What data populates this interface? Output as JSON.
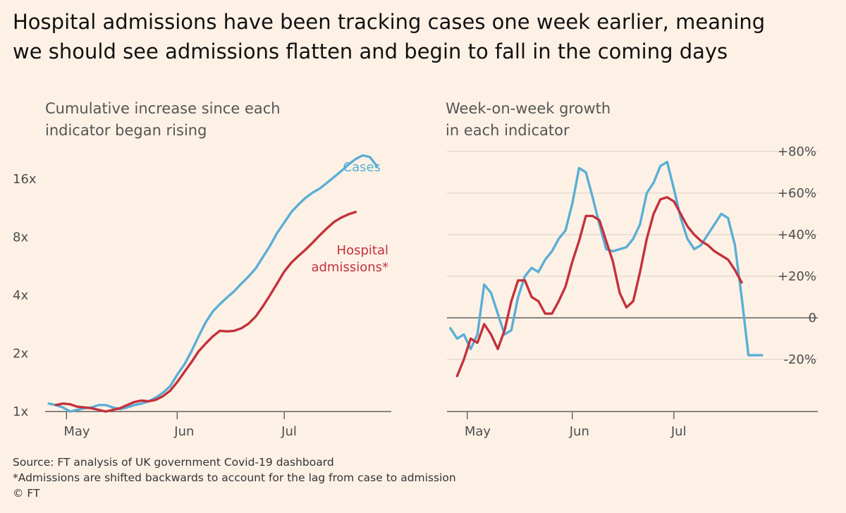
{
  "title_lines": [
    "Hospital admissions have been tracking cases one week earlier, meaning",
    "we should see admissions flatten and begin to fall in the coming days"
  ],
  "footer": {
    "source": "Source: FT analysis of UK government Covid-19 dashboard",
    "note": "*Admissions are shifted backwards to account for the lag from case to admission",
    "credit": "© FT"
  },
  "colors": {
    "cases": "#5aaed5",
    "admissions": "#c4313b",
    "axis": "#444444",
    "grid": "#d9cfc6"
  },
  "chart_data": [
    {
      "type": "line",
      "title_lines": [
        "Cumulative increase since each",
        "indicator began rising"
      ],
      "x_ticks": [
        "May",
        "Jun",
        "Jul"
      ],
      "y_scale": "log2",
      "y_ticks": [
        "1x",
        "2x",
        "4x",
        "8x",
        "16x"
      ],
      "y_tick_values": [
        1,
        2,
        4,
        8,
        16
      ],
      "ylim": [
        1,
        26
      ],
      "series": [
        {
          "name": "Cases",
          "x": [
            "Apr 26",
            "Apr 28",
            "Apr 30",
            "May 2",
            "May 4",
            "May 6",
            "May 8",
            "May 10",
            "May 12",
            "May 14",
            "May 16",
            "May 18",
            "May 20",
            "May 22",
            "May 24",
            "May 26",
            "May 28",
            "May 30",
            "Jun 1",
            "Jun 3",
            "Jun 5",
            "Jun 7",
            "Jun 9",
            "Jun 11",
            "Jun 13",
            "Jun 15",
            "Jun 17",
            "Jun 19",
            "Jun 21",
            "Jun 23",
            "Jun 25",
            "Jun 27",
            "Jun 29",
            "Jul 1",
            "Jul 3",
            "Jul 5",
            "Jul 7",
            "Jul 9",
            "Jul 11",
            "Jul 13",
            "Jul 15",
            "Jul 17",
            "Jul 19",
            "Jul 21",
            "Jul 23",
            "Jul 25",
            "Jul 27"
          ],
          "y": [
            1.1,
            1.08,
            1.05,
            1.0,
            1.02,
            1.04,
            1.05,
            1.08,
            1.08,
            1.05,
            1.03,
            1.05,
            1.08,
            1.1,
            1.13,
            1.18,
            1.25,
            1.35,
            1.55,
            1.75,
            2.05,
            2.45,
            2.9,
            3.3,
            3.6,
            3.9,
            4.2,
            4.6,
            5.0,
            5.5,
            6.3,
            7.2,
            8.4,
            9.5,
            10.8,
            11.8,
            12.8,
            13.6,
            14.3,
            15.3,
            16.4,
            17.6,
            19.0,
            20.3,
            21.2,
            20.8,
            18.6
          ]
        },
        {
          "name": "Hospital admissions*",
          "x": [
            "Apr 28",
            "Apr 30",
            "May 2",
            "May 4",
            "May 6",
            "May 8",
            "May 10",
            "May 12",
            "May 14",
            "May 16",
            "May 18",
            "May 20",
            "May 22",
            "May 24",
            "May 26",
            "May 28",
            "May 30",
            "Jun 1",
            "Jun 3",
            "Jun 5",
            "Jun 7",
            "Jun 9",
            "Jun 11",
            "Jun 13",
            "Jun 15",
            "Jun 17",
            "Jun 19",
            "Jun 21",
            "Jun 23",
            "Jun 25",
            "Jun 27",
            "Jun 29",
            "Jul 1",
            "Jul 3",
            "Jul 5",
            "Jul 7",
            "Jul 9",
            "Jul 11",
            "Jul 13",
            "Jul 15",
            "Jul 17",
            "Jul 19",
            "Jul 21"
          ],
          "y": [
            1.08,
            1.1,
            1.09,
            1.06,
            1.05,
            1.04,
            1.02,
            1.0,
            1.02,
            1.04,
            1.08,
            1.12,
            1.14,
            1.13,
            1.15,
            1.2,
            1.28,
            1.42,
            1.6,
            1.8,
            2.05,
            2.25,
            2.45,
            2.62,
            2.6,
            2.62,
            2.7,
            2.85,
            3.1,
            3.5,
            4.0,
            4.6,
            5.3,
            5.9,
            6.4,
            6.9,
            7.5,
            8.2,
            8.9,
            9.6,
            10.1,
            10.5,
            10.8
          ]
        }
      ]
    },
    {
      "type": "line",
      "title_lines": [
        "Week-on-week growth",
        "in each indicator"
      ],
      "x_ticks": [
        "May",
        "Jun",
        "Jul"
      ],
      "y_ticks": [
        "-20%",
        "0",
        "+20%",
        "+40%",
        "+60%",
        "+80%"
      ],
      "y_tick_values": [
        -20,
        0,
        20,
        40,
        60,
        80
      ],
      "ylim": [
        -25,
        85
      ],
      "series": [
        {
          "name": "Cases",
          "x": [
            "Apr 26",
            "Apr 28",
            "Apr 30",
            "May 2",
            "May 4",
            "May 6",
            "May 8",
            "May 10",
            "May 12",
            "May 14",
            "May 16",
            "May 18",
            "May 20",
            "May 22",
            "May 24",
            "May 26",
            "May 28",
            "May 30",
            "Jun 1",
            "Jun 3",
            "Jun 5",
            "Jun 7",
            "Jun 9",
            "Jun 11",
            "Jun 13",
            "Jun 15",
            "Jun 17",
            "Jun 19",
            "Jun 21",
            "Jun 23",
            "Jun 25",
            "Jun 27",
            "Jun 29",
            "Jul 1",
            "Jul 3",
            "Jul 5",
            "Jul 7",
            "Jul 9",
            "Jul 11",
            "Jul 13",
            "Jul 15",
            "Jul 17",
            "Jul 19",
            "Jul 21",
            "Jul 23",
            "Jul 25",
            "Jul 27"
          ],
          "y": [
            -5,
            -10,
            -8,
            -15,
            -8,
            16,
            12,
            2,
            -8,
            -6,
            10,
            20,
            24,
            22,
            28,
            32,
            38,
            42,
            55,
            72,
            70,
            58,
            45,
            33,
            32,
            33,
            34,
            38,
            45,
            60,
            65,
            73,
            75,
            62,
            48,
            38,
            33,
            35,
            40,
            45,
            50,
            48,
            35,
            10,
            -18,
            -18,
            -18
          ]
        },
        {
          "name": "Hospital admissions*",
          "x": [
            "Apr 28",
            "Apr 30",
            "May 2",
            "May 4",
            "May 6",
            "May 8",
            "May 10",
            "May 12",
            "May 14",
            "May 16",
            "May 18",
            "May 20",
            "May 22",
            "May 24",
            "May 26",
            "May 28",
            "May 30",
            "Jun 1",
            "Jun 3",
            "Jun 5",
            "Jun 7",
            "Jun 9",
            "Jun 11",
            "Jun 13",
            "Jun 15",
            "Jun 17",
            "Jun 19",
            "Jun 21",
            "Jun 23",
            "Jun 25",
            "Jun 27",
            "Jun 29",
            "Jul 1",
            "Jul 3",
            "Jul 5",
            "Jul 7",
            "Jul 9",
            "Jul 11",
            "Jul 13",
            "Jul 15",
            "Jul 17",
            "Jul 19",
            "Jul 21"
          ],
          "y": [
            -28,
            -20,
            -10,
            -12,
            -3,
            -8,
            -15,
            -6,
            8,
            18,
            18,
            10,
            8,
            2,
            2,
            8,
            15,
            27,
            37,
            49,
            49,
            47,
            37,
            27,
            12,
            5,
            8,
            22,
            38,
            50,
            57,
            58,
            56,
            50,
            44,
            40,
            37,
            35,
            32,
            30,
            28,
            23,
            17
          ]
        }
      ]
    }
  ]
}
